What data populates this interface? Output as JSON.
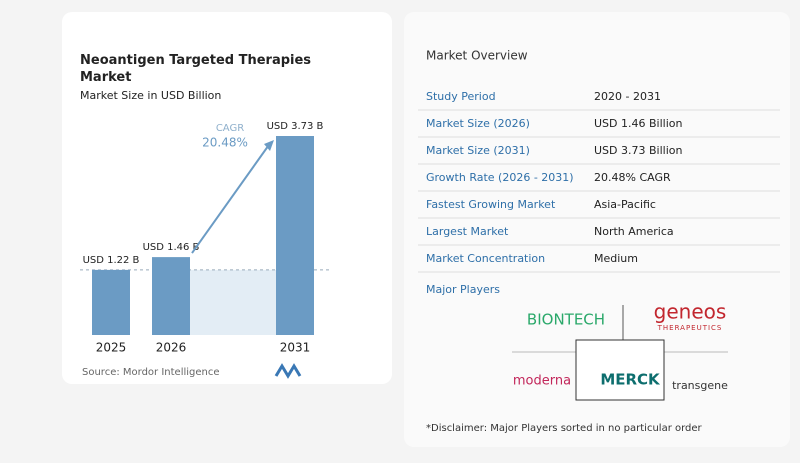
{
  "chart_data": {
    "type": "bar",
    "title": "Neoantigen Targeted Therapies Market",
    "subtitle": "Market Size in USD Billion",
    "categories": [
      "2025",
      "2026",
      "2031"
    ],
    "values": [
      1.22,
      1.46,
      3.73
    ],
    "value_labels": [
      "USD 1.22 B",
      "USD 1.46 B",
      "USD 3.73 B"
    ],
    "color": "#6b9bc4",
    "cagr": {
      "label": "CAGR",
      "value": "20.48%"
    },
    "source": "Source: Mordor Intelligence"
  },
  "overview": {
    "title": "Market Overview",
    "rows": [
      [
        "Study Period",
        "2020 - 2031"
      ],
      [
        "Market Size (2026)",
        "USD 1.46 Billion"
      ],
      [
        "Market Size (2031)",
        "USD 3.73 Billion"
      ],
      [
        "Growth Rate (2026 - 2031)",
        "20.48% CAGR"
      ],
      [
        "Fastest Growing Market",
        "Asia-Pacific"
      ],
      [
        "Largest Market",
        "North America"
      ],
      [
        "Market Concentration",
        "Medium"
      ]
    ]
  },
  "major_players": {
    "title": "Major Players",
    "logos": [
      "BIONTECH",
      "geneos",
      "THERAPEUTICS",
      "moderna",
      "MERCK",
      "transgene"
    ]
  },
  "disclaimer": "*Disclaimer: Major Players sorted in no particular order"
}
